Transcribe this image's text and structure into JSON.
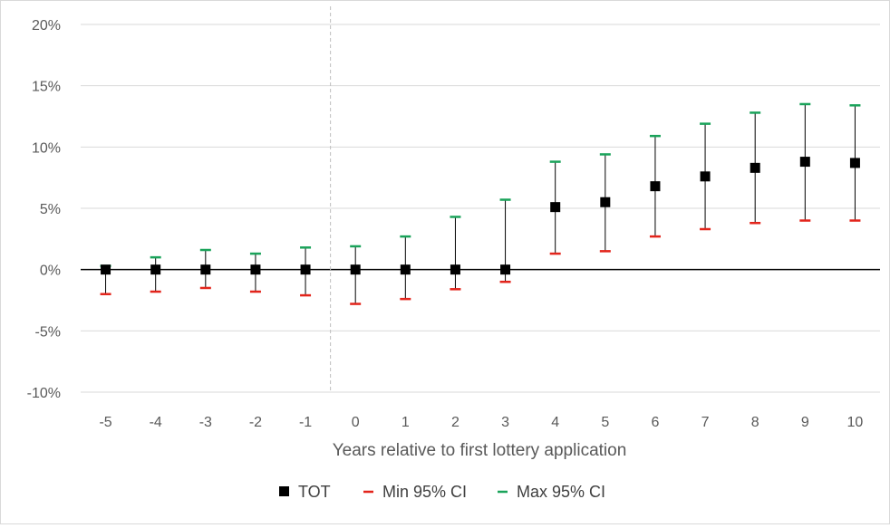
{
  "chart_data": {
    "type": "scatter",
    "title": "",
    "xlabel": "Years relative to first lottery application",
    "ylabel": "",
    "x": [
      -5,
      -4,
      -3,
      -2,
      -1,
      0,
      1,
      2,
      3,
      4,
      5,
      6,
      7,
      8,
      9,
      10
    ],
    "x_tick_labels": [
      "-5",
      "-4",
      "-3",
      "-2",
      "-1",
      "0",
      "1",
      "2",
      "3",
      "4",
      "5",
      "6",
      "7",
      "8",
      "9",
      "10"
    ],
    "y_tick_values": [
      -10,
      -5,
      0,
      5,
      10,
      15,
      20
    ],
    "y_tick_labels": [
      "-10%",
      "-5%",
      "0%",
      "5%",
      "10%",
      "15%",
      "20%"
    ],
    "ylim": [
      -10,
      20
    ],
    "y_unit": "percent",
    "grid": "horizontal",
    "reference_line_x": -0.5,
    "series": [
      {
        "name": "TOT",
        "marker": "square",
        "color": "#000000",
        "values": [
          0,
          0,
          0,
          0,
          0,
          0,
          0,
          0,
          0,
          5.1,
          5.5,
          6.8,
          7.6,
          8.3,
          8.8,
          8.7
        ]
      },
      {
        "name": "Min 95% CI",
        "marker": "dash",
        "color": "#e3241b",
        "values": [
          -2.0,
          -1.8,
          -1.5,
          -1.8,
          -2.1,
          -2.8,
          -2.4,
          -1.6,
          -1.0,
          1.3,
          1.5,
          2.7,
          3.3,
          3.8,
          4.0,
          4.0
        ]
      },
      {
        "name": "Max 95% CI",
        "marker": "dash",
        "color": "#1aa35a",
        "values": [
          0.3,
          1.0,
          1.6,
          1.3,
          1.8,
          1.9,
          2.7,
          4.3,
          5.7,
          8.8,
          9.4,
          10.9,
          11.9,
          12.8,
          13.5,
          13.4
        ]
      }
    ],
    "legend_position": "bottom"
  }
}
